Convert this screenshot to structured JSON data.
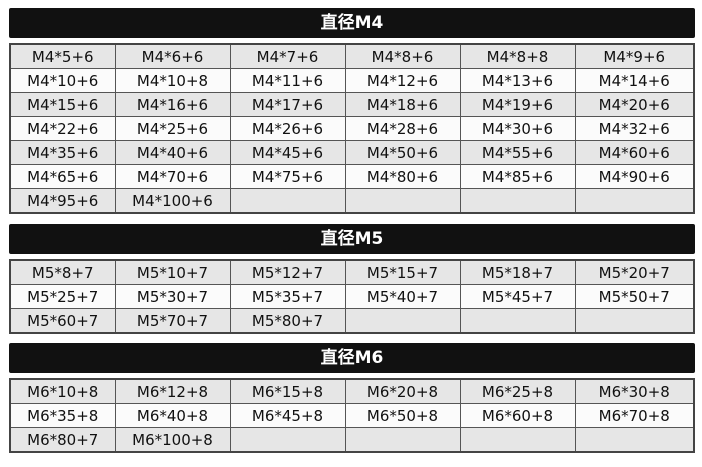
{
  "sections": [
    {
      "title": "直径M4",
      "rows": [
        [
          "M4*5+6",
          "M4*6+6",
          "M4*7+6",
          "M4*8+6",
          "M4*8+8",
          "M4*9+6"
        ],
        [
          "M4*10+6",
          "M4*10+8",
          "M4*11+6",
          "M4*12+6",
          "M4*13+6",
          "M4*14+6"
        ],
        [
          "M4*15+6",
          "M4*16+6",
          "M4*17+6",
          "M4*18+6",
          "M4*19+6",
          "M4*20+6"
        ],
        [
          "M4*22+6",
          "M4*25+6",
          "M4*26+6",
          "M4*28+6",
          "M4*30+6",
          "M4*32+6"
        ],
        [
          "M4*35+6",
          "M4*40+6",
          "M4*45+6",
          "M4*50+6",
          "M4*55+6",
          "M4*60+6"
        ],
        [
          "M4*65+6",
          "M4*70+6",
          "M4*75+6",
          "M4*80+6",
          "M4*85+6",
          "M4*90+6"
        ],
        [
          "M4*95+6",
          "M4*100+6",
          "",
          "",
          "",
          ""
        ]
      ]
    },
    {
      "title": "直径M5",
      "rows": [
        [
          "M5*8+7",
          "M5*10+7",
          "M5*12+7",
          "M5*15+7",
          "M5*18+7",
          "M5*20+7"
        ],
        [
          "M5*25+7",
          "M5*30+7",
          "M5*35+7",
          "M5*40+7",
          "M5*45+7",
          "M5*50+7"
        ],
        [
          "M5*60+7",
          "M5*70+7",
          "M5*80+7",
          "",
          "",
          ""
        ]
      ]
    },
    {
      "title": "直径M6",
      "rows": [
        [
          "M6*10+8",
          "M6*12+8",
          "M6*15+8",
          "M6*20+8",
          "M6*25+8",
          "M6*30+8"
        ],
        [
          "M6*35+8",
          "M6*40+8",
          "M6*45+8",
          "M6*50+8",
          "M6*60+8",
          "M6*70+8"
        ],
        [
          "M6*80+7",
          "M6*100+8",
          "",
          "",
          "",
          ""
        ]
      ]
    }
  ]
}
